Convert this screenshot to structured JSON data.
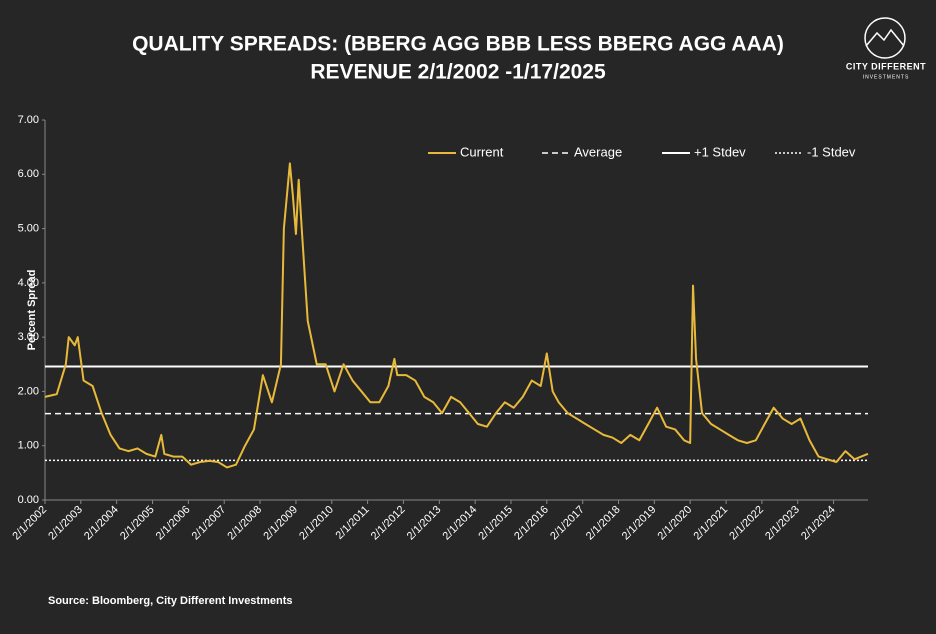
{
  "chart_data": {
    "type": "line",
    "title": "QUALITY SPREADS: (BBERG AGG BBB LESS BBERG AGG AAA)",
    "subtitle": "REVENUE 2/1/2002 -1/17/2025",
    "y_label": "Percent Spread",
    "source": "Source: Bloomberg, City Different Investments",
    "logo": {
      "line1": "CITY DIFFERENT",
      "line2": "INVESTMENTS"
    },
    "x": [
      "2002-02-01",
      "2002-06-01",
      "2002-09-01",
      "2002-10-01",
      "2002-12-01",
      "2003-01-01",
      "2003-03-01",
      "2003-06-01",
      "2003-09-01",
      "2003-12-01",
      "2004-03-01",
      "2004-06-01",
      "2004-09-01",
      "2004-12-01",
      "2005-03-01",
      "2005-05-01",
      "2005-06-01",
      "2005-09-01",
      "2005-12-01",
      "2006-03-01",
      "2006-06-01",
      "2006-09-01",
      "2006-12-01",
      "2007-03-01",
      "2007-06-01",
      "2007-09-01",
      "2007-12-01",
      "2008-03-01",
      "2008-06-01",
      "2008-09-01",
      "2008-10-01",
      "2008-12-01",
      "2009-01-01",
      "2009-02-01",
      "2009-03-01",
      "2009-04-01",
      "2009-06-01",
      "2009-09-01",
      "2009-12-01",
      "2010-03-01",
      "2010-06-01",
      "2010-09-01",
      "2010-12-01",
      "2011-03-01",
      "2011-06-01",
      "2011-09-01",
      "2011-11-01",
      "2011-12-01",
      "2012-03-01",
      "2012-06-01",
      "2012-09-01",
      "2012-12-01",
      "2013-03-01",
      "2013-06-01",
      "2013-09-01",
      "2013-12-01",
      "2014-03-01",
      "2014-06-01",
      "2014-09-01",
      "2014-12-01",
      "2015-03-01",
      "2015-06-01",
      "2015-09-01",
      "2015-12-01",
      "2016-02-01",
      "2016-04-01",
      "2016-06-01",
      "2016-09-01",
      "2016-12-01",
      "2017-03-01",
      "2017-06-01",
      "2017-09-01",
      "2017-12-01",
      "2018-03-01",
      "2018-06-01",
      "2018-09-01",
      "2018-12-01",
      "2019-03-01",
      "2019-06-01",
      "2019-09-01",
      "2019-12-01",
      "2020-02-01",
      "2020-03-01",
      "2020-04-01",
      "2020-06-01",
      "2020-09-01",
      "2020-12-01",
      "2021-03-01",
      "2021-06-01",
      "2021-09-01",
      "2021-12-01",
      "2022-03-01",
      "2022-06-01",
      "2022-09-01",
      "2022-12-01",
      "2023-03-01",
      "2023-06-01",
      "2023-09-01",
      "2023-12-01",
      "2024-03-01",
      "2024-06-01",
      "2024-09-01",
      "2025-01-17"
    ],
    "series": [
      {
        "name": "Current",
        "color": "#e8b93a",
        "values": [
          1.9,
          1.95,
          2.5,
          3.0,
          2.85,
          3.0,
          2.2,
          2.1,
          1.6,
          1.2,
          0.95,
          0.9,
          0.95,
          0.85,
          0.8,
          1.2,
          0.85,
          0.8,
          0.8,
          0.65,
          0.7,
          0.72,
          0.7,
          0.6,
          0.65,
          1.0,
          1.3,
          2.3,
          1.8,
          2.5,
          5.0,
          6.2,
          5.6,
          4.9,
          5.9,
          5.0,
          3.3,
          2.5,
          2.5,
          2.0,
          2.5,
          2.2,
          2.0,
          1.8,
          1.8,
          2.1,
          2.6,
          2.3,
          2.3,
          2.2,
          1.9,
          1.8,
          1.6,
          1.9,
          1.8,
          1.6,
          1.4,
          1.35,
          1.6,
          1.8,
          1.7,
          1.9,
          2.2,
          2.1,
          2.7,
          2.0,
          1.8,
          1.6,
          1.5,
          1.4,
          1.3,
          1.2,
          1.15,
          1.05,
          1.2,
          1.1,
          1.4,
          1.7,
          1.35,
          1.3,
          1.1,
          1.05,
          3.95,
          2.6,
          1.6,
          1.4,
          1.3,
          1.2,
          1.1,
          1.05,
          1.1,
          1.4,
          1.7,
          1.5,
          1.4,
          1.5,
          1.1,
          0.8,
          0.75,
          0.7,
          0.9,
          0.75,
          0.85
        ]
      }
    ],
    "reference_lines": [
      {
        "name": "Average",
        "value": 1.59,
        "color": "#ffffff",
        "style": "dashed"
      },
      {
        "name": "+1 Stdev",
        "value": 2.46,
        "color": "#ffffff",
        "style": "solid"
      },
      {
        "name": "-1 Stdev",
        "value": 0.73,
        "color": "#ffffff",
        "style": "dotted"
      }
    ],
    "xlim": [
      "2002-02-01",
      "2025-01-17"
    ],
    "xticks": [
      {
        "value": "2002-02-01",
        "label": "2/1/2002"
      },
      {
        "value": "2003-02-01",
        "label": "2/1/2003"
      },
      {
        "value": "2004-02-01",
        "label": "2/1/2004"
      },
      {
        "value": "2005-02-01",
        "label": "2/1/2005"
      },
      {
        "value": "2006-02-01",
        "label": "2/1/2006"
      },
      {
        "value": "2007-02-01",
        "label": "2/1/2007"
      },
      {
        "value": "2008-02-01",
        "label": "2/1/2008"
      },
      {
        "value": "2009-02-01",
        "label": "2/1/2009"
      },
      {
        "value": "2010-02-01",
        "label": "2/1/2010"
      },
      {
        "value": "2011-02-01",
        "label": "2/1/2011"
      },
      {
        "value": "2012-02-01",
        "label": "2/1/2012"
      },
      {
        "value": "2013-02-01",
        "label": "2/1/2013"
      },
      {
        "value": "2014-02-01",
        "label": "2/1/2014"
      },
      {
        "value": "2015-02-01",
        "label": "2/1/2015"
      },
      {
        "value": "2016-02-01",
        "label": "2/1/2016"
      },
      {
        "value": "2017-02-01",
        "label": "2/1/2017"
      },
      {
        "value": "2018-02-01",
        "label": "2/1/2018"
      },
      {
        "value": "2019-02-01",
        "label": "2/1/2019"
      },
      {
        "value": "2020-02-01",
        "label": "2/1/2020"
      },
      {
        "value": "2021-02-01",
        "label": "2/1/2021"
      },
      {
        "value": "2022-02-01",
        "label": "2/1/2022"
      },
      {
        "value": "2023-02-01",
        "label": "2/1/2023"
      },
      {
        "value": "2024-02-01",
        "label": "2/1/2024"
      }
    ],
    "ylim": [
      0,
      7
    ],
    "yticks": [
      {
        "value": 0,
        "label": "0.00"
      },
      {
        "value": 1,
        "label": "1.00"
      },
      {
        "value": 2,
        "label": "2.00"
      },
      {
        "value": 3,
        "label": "3.00"
      },
      {
        "value": 4,
        "label": "4.00"
      },
      {
        "value": 5,
        "label": "5.00"
      },
      {
        "value": 6,
        "label": "6.00"
      },
      {
        "value": 7,
        "label": "7.00"
      }
    ],
    "grid": false
  }
}
